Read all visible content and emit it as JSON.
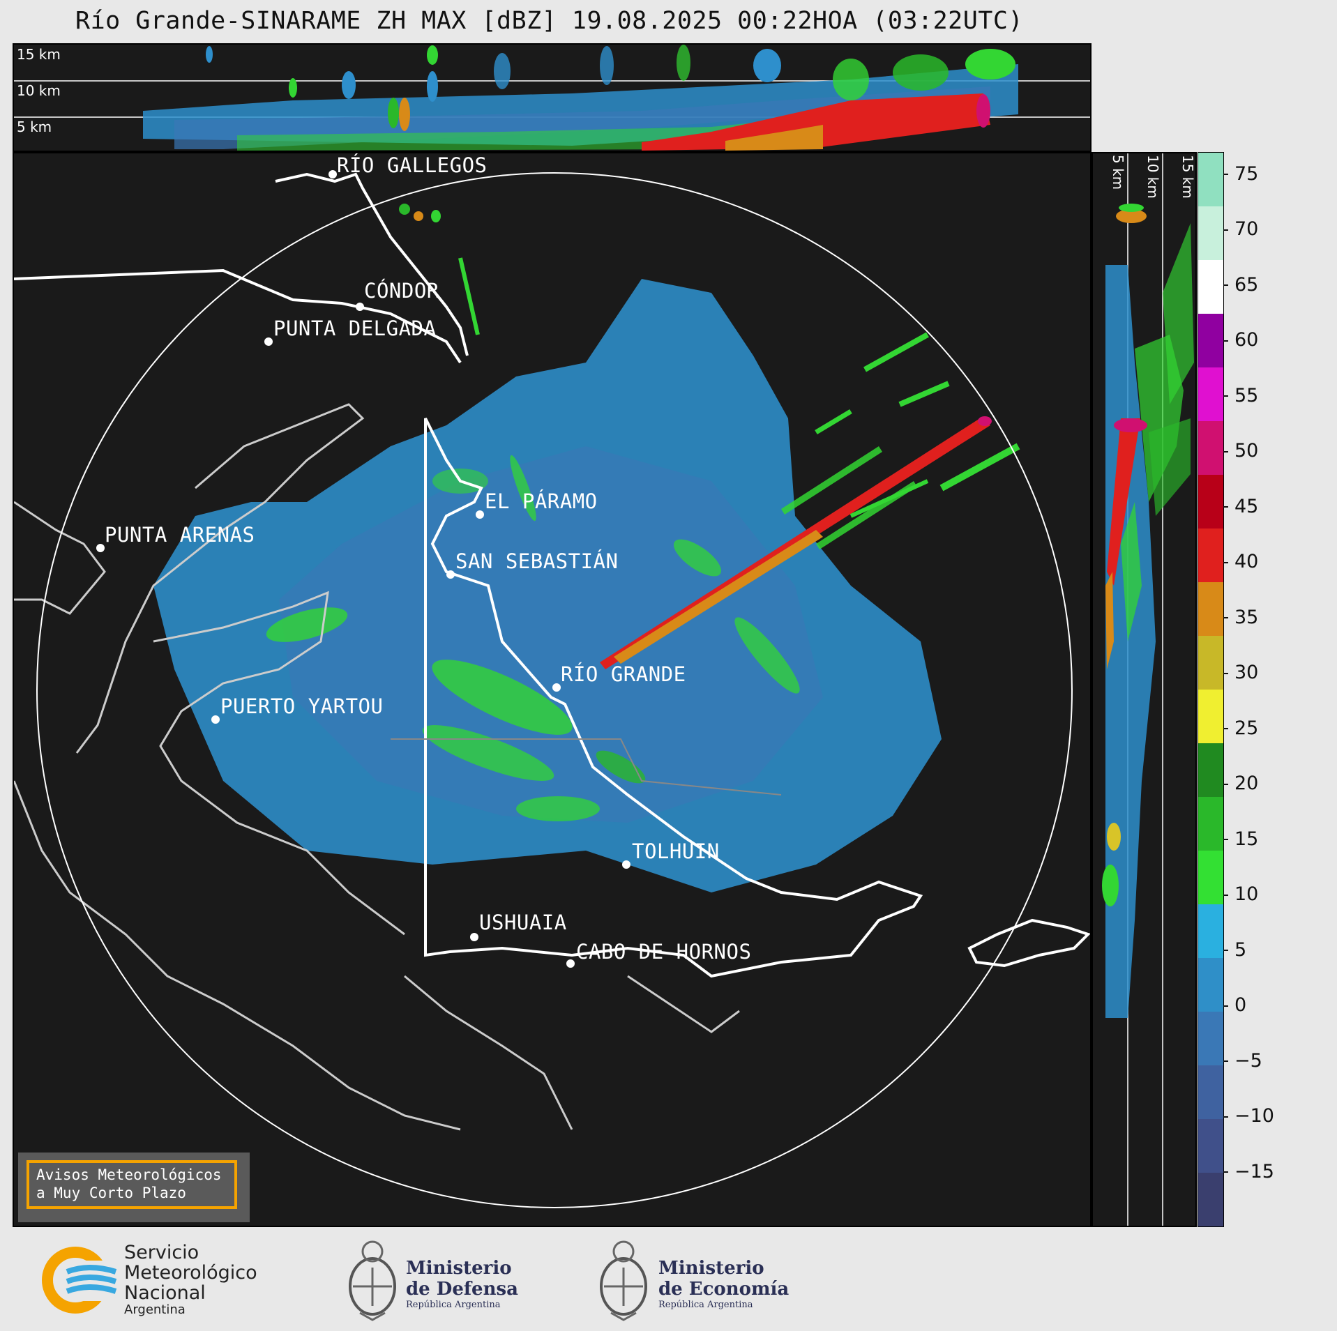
{
  "title": "Río Grande-SINARAME ZH MAX [dBZ] 19.08.2025 00:22HOA (03:22UTC)",
  "top_altitudes": [
    "15 km",
    "10 km",
    "5 km"
  ],
  "side_altitudes": [
    "5 km",
    "10 km",
    "15 km"
  ],
  "cities": [
    {
      "id": "rio-gallegos",
      "label": "RÍO GALLEGOS"
    },
    {
      "id": "condor",
      "label": "CÓNDOR"
    },
    {
      "id": "punta-delgada",
      "label": "PUNTA DELGADA"
    },
    {
      "id": "el-paramo",
      "label": "EL PÁRAMO"
    },
    {
      "id": "punta-arenas",
      "label": "PUNTA ARENAS"
    },
    {
      "id": "san-sebastian",
      "label": "SAN SEBASTIÁN"
    },
    {
      "id": "rio-grande",
      "label": "RÍO GRANDE"
    },
    {
      "id": "puerto-yartou",
      "label": "PUERTO YARTOU"
    },
    {
      "id": "tolhuin",
      "label": "TOLHUIN"
    },
    {
      "id": "ushuaia",
      "label": "USHUAIA"
    },
    {
      "id": "cabo-de-hornos",
      "label": "CABO DE HORNOS"
    }
  ],
  "colorbar": {
    "unit": "dBZ",
    "ticks": [
      "75",
      "70",
      "65",
      "60",
      "55",
      "50",
      "45",
      "40",
      "35",
      "30",
      "25",
      "20",
      "15",
      "10",
      "5",
      "0",
      "−5",
      "−10",
      "−15"
    ],
    "colors": [
      "#3a3f6e",
      "#40508a",
      "#3f62a0",
      "#3a78b6",
      "#2f8fc8",
      "#2ab0e0",
      "#33e033",
      "#2ab82a",
      "#208a20",
      "#f0ef30",
      "#c8b828",
      "#d88a18",
      "#e0201e",
      "#b80018",
      "#d01070",
      "#e010d0",
      "#9000a0",
      "#ffffff",
      "#c8f0dc",
      "#90e0c0"
    ],
    "range": [
      -20,
      77
    ]
  },
  "warning": {
    "line1": "Avisos Meteorológicos",
    "line2": "a Muy Corto Plazo"
  },
  "logos": {
    "smn": {
      "line1": "Servicio",
      "line2": "Meteorológico",
      "line3": "Nacional",
      "line4": "Argentina"
    },
    "defensa": {
      "line1": "Ministerio",
      "line2": "de Defensa",
      "line3": "República Argentina"
    },
    "economia": {
      "line1": "Ministerio",
      "line2": "de Economía",
      "line3": "República Argentina"
    }
  },
  "colors": {
    "accent_warning": "#f5a300",
    "panel_bg": "#1a1a1a",
    "echo_blue": "#2e8fcc",
    "echo_green": "#33d633",
    "echo_red": "#d0101c"
  }
}
